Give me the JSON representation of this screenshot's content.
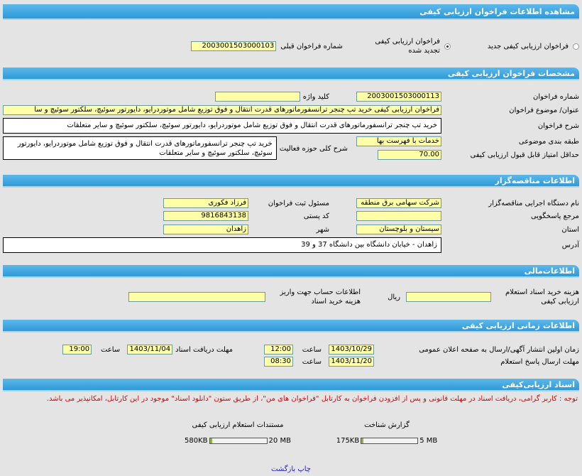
{
  "title": "مشاهده اطلاعات فراخوان ارزيابی کيفی",
  "type_options": [
    {
      "label": "فراخوان ارزيابی کيفی جديد",
      "selected": false
    },
    {
      "label": "فراخوان ارزيابی کيفی تجديد شده",
      "selected": true
    }
  ],
  "previous_call": {
    "label": "شماره فراخوان قبلی",
    "value": "2003001503000103"
  },
  "spec": {
    "header": "مشخصات فراخوان ارزيابی کيفی",
    "call_number_label": "شماره فراخوان",
    "call_number": "2003001503000113",
    "keyword_label": "کليد واژه",
    "keyword": "",
    "subject_label": "عنوان/ موضوع فراخوان",
    "subject": "فراخوان ارزيابی کيفی خريد تپ چنجر ترانسفورماتورهای قدرت انتقال و فوق توزيع شامل موتوردرايو، دايورتور سوئيچ، سلکتور سوئيچ و سا",
    "description_label": "شرح فراخوان",
    "description": "خريد تپ چنجر  ترانسفورماتورهای قدرت انتقال و فوق توزيع شامل  موتوردرايو،  دايورتور  سوئيچ،  سلکتور  سوئيچ و ساير  متعلقات",
    "category_label": "طبقه بندی موضوعی",
    "category": "خدمات با فهرست بها",
    "activity_label": "شرح کلی حوزه فعاليت",
    "activity": "خريد تپ چنجر  ترانسفورماتورهای قدرت انتقال و فوق توزيع شامل  موتوردرايو،  دايورتور  سوئيچ،  سلکتور سوئيچ و ساير متعلقات",
    "min_score_label": "حداقل امتياز قابل قبول ارزيابی کيفی",
    "min_score": "70.00"
  },
  "organizer": {
    "header": "اطلاعات مناقصه‌گزار",
    "org_label": "نام دستگاه اجرايی مناقصه‌گزار",
    "org": "شرکت سهامی برق منطقه",
    "registrar_label": "مسئول ثبت فراخوان",
    "registrar": "فرزاد فکوری",
    "ref_label": "مرجع پاسخگويی",
    "ref": "",
    "postal_label": "کد پستی",
    "postal": "9816843138",
    "province_label": "استان",
    "province": "سيستان و بلوچستان",
    "city_label": "شهر",
    "city": "زاهدان",
    "address_label": "آدرس",
    "address": "زاهدان - خيابان دانشگاه بين دانشگاه 37 و 39"
  },
  "financial": {
    "header": "اطلاعات‌مالی",
    "fee_label": "هزينه خريد اسناد استعلام ارزيابی کيفی",
    "fee": "",
    "currency": "ريال",
    "account_label": "اطلاعات حساب جهت واريز هزينه خريد اسناد",
    "account": ""
  },
  "timing": {
    "header": "اطلاعات زمانی ارزيابی کيفی",
    "publish_label": "زمان اولين انتشار آگهی/ارسال به صفحه اعلان عمومی",
    "publish_date": "1403/10/29",
    "publish_time": "12:00",
    "receive_label": "مهلت دريافت اسناد",
    "receive_date": "1403/11/04",
    "receive_time": "19:00",
    "reply_label": "مهلت ارسال پاسخ استعلام",
    "reply_date": "1403/11/20",
    "reply_time": "08:30",
    "time_label": "ساعت"
  },
  "documents": {
    "header": "اسناد ارزيابی‌کيفی",
    "note": "توجه : کاربر گرامی، دريافت اسناد در مهلت قانونی و پس از افزودن فراخوان به کارتابل \"فراخوان های من\"، از طريق ستون \"دانلود اسناد\" موجود در اين کارتابل، امکانپذير می باشد.",
    "files": [
      {
        "label": "گزارش شناخت",
        "size": "175KB",
        "max": "5 MB",
        "fill": 0.034,
        "color": "#8ab830"
      },
      {
        "label": "مستندات استعلام ارزيابی کيفی",
        "size": "580KB",
        "max": "20 MB",
        "fill": 0.028,
        "color": "#8ab830"
      }
    ]
  },
  "links": {
    "print": "چاپ",
    "back": "بازگشت"
  }
}
